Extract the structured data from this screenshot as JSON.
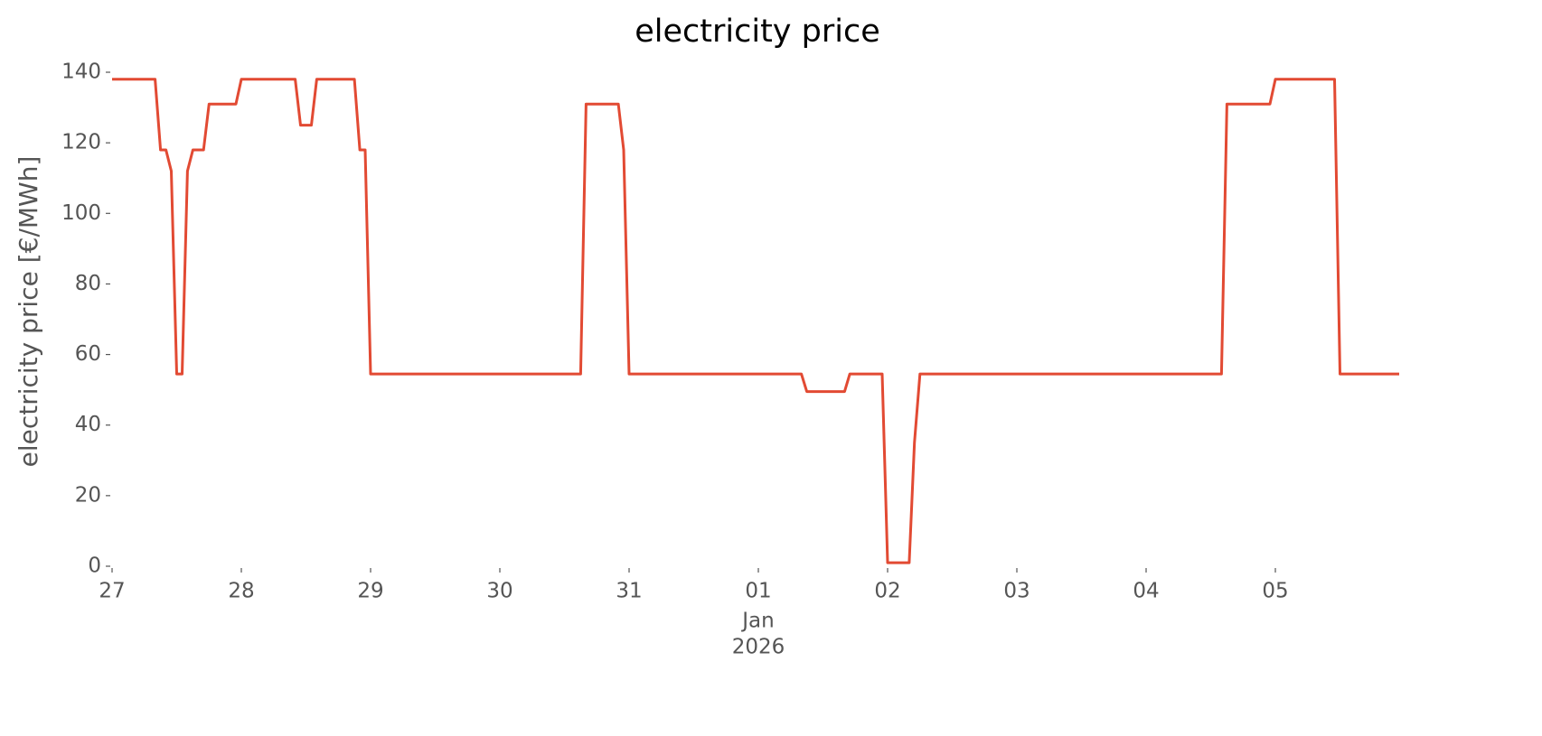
{
  "chart_data": {
    "type": "line",
    "title": "electricity price",
    "ylabel": "electricity price [€/MWh]",
    "x": [
      0,
      0.333,
      0.375,
      0.417,
      0.458,
      0.5,
      0.542,
      0.583,
      0.625,
      0.708,
      0.75,
      0.958,
      1.0,
      1.417,
      1.458,
      1.542,
      1.583,
      1.875,
      1.917,
      1.958,
      2.0,
      3.625,
      3.667,
      3.917,
      3.958,
      4.0,
      5.333,
      5.375,
      5.667,
      5.708,
      5.958,
      6.0,
      6.167,
      6.208,
      6.25,
      8.583,
      8.625,
      8.958,
      9.0,
      9.458,
      9.5,
      9.958
    ],
    "values": [
      138,
      138,
      118,
      118,
      112,
      54.5,
      54.5,
      112,
      118,
      118,
      131,
      131,
      138,
      138,
      125,
      125,
      138,
      138,
      118,
      118,
      54.5,
      54.5,
      131,
      131,
      118,
      54.5,
      54.5,
      49.5,
      49.5,
      54.5,
      54.5,
      1,
      1,
      35,
      54.5,
      54.5,
      131,
      131,
      138,
      138,
      54.5,
      54.5
    ],
    "color": "#e24a33",
    "xlim": [
      0,
      9.958
    ],
    "xticks": [
      {
        "value": 0,
        "label": "27"
      },
      {
        "value": 1,
        "label": "28"
      },
      {
        "value": 2,
        "label": "29"
      },
      {
        "value": 3,
        "label": "30"
      },
      {
        "value": 4,
        "label": "31"
      },
      {
        "value": 5,
        "label": "01"
      },
      {
        "value": 6,
        "label": "02"
      },
      {
        "value": 7,
        "label": "03"
      },
      {
        "value": 8,
        "label": "04"
      },
      {
        "value": 9,
        "label": "05"
      }
    ],
    "x_secondary_labels": [
      "Jan",
      "2026"
    ],
    "ylim": [
      0,
      140
    ],
    "yticks": [
      0,
      20,
      40,
      60,
      80,
      100,
      120,
      140
    ]
  }
}
